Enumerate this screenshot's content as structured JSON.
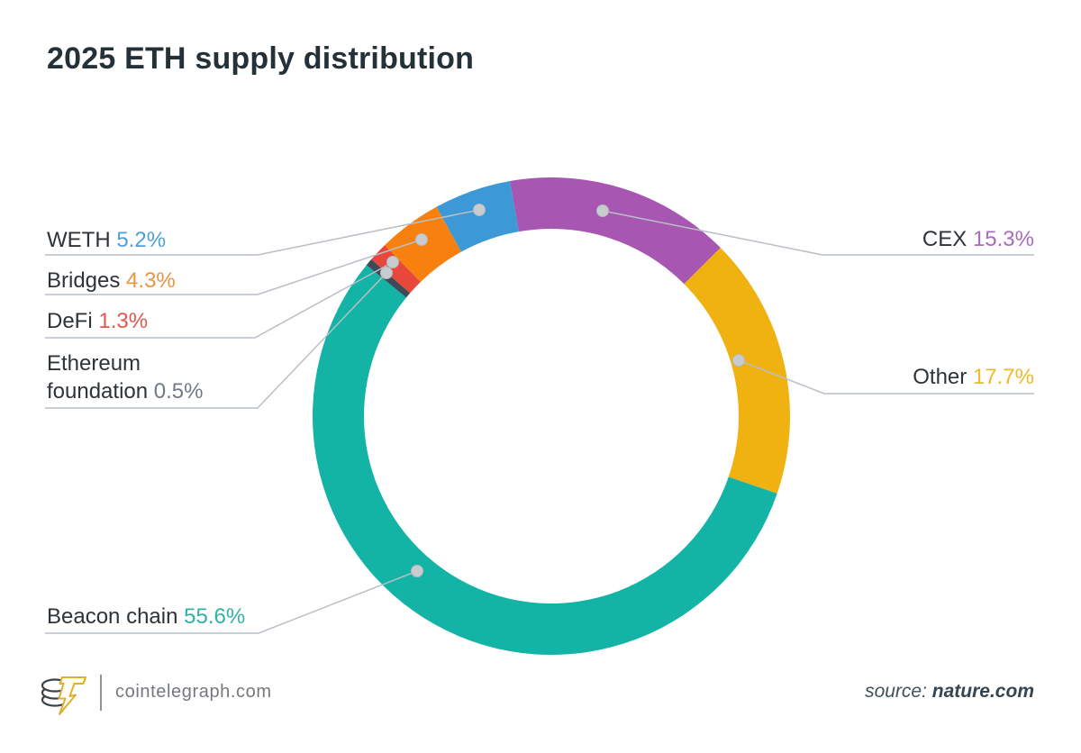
{
  "page": {
    "background": "#ffffff"
  },
  "title": "2025 ETH supply distribution",
  "chart_data": {
    "type": "pie",
    "subtype": "donut",
    "title": "2025 ETH supply distribution",
    "unit": "%",
    "rotation_deg": -10,
    "direction": "clockwise",
    "inner_radius_ratio": 0.785,
    "legend_position": "callout-labels",
    "slices": [
      {
        "label": "CEX",
        "value": 15.3,
        "display": "15.3%",
        "color": "#A756B2",
        "pct_color": "#A96CBC",
        "callout_side": "right"
      },
      {
        "label": "Other",
        "value": 17.7,
        "display": "17.7%",
        "color": "#EFB211",
        "pct_color": "#EEB92F",
        "callout_side": "right"
      },
      {
        "label": "Beacon chain",
        "value": 55.6,
        "display": "55.6%",
        "color": "#13B3A6",
        "pct_color": "#2FB3A6",
        "callout_side": "left"
      },
      {
        "label": "Ethereum foundation",
        "value": 0.5,
        "display": "0.5%",
        "color": "#3E4A58",
        "pct_color": "#6F7B87",
        "callout_side": "left"
      },
      {
        "label": "DeFi",
        "value": 1.3,
        "display": "1.3%",
        "color": "#E8483B",
        "pct_color": "#E2574A",
        "callout_side": "left"
      },
      {
        "label": "Bridges",
        "value": 4.3,
        "display": "4.3%",
        "color": "#F8800E",
        "pct_color": "#EA9440",
        "callout_side": "left"
      },
      {
        "label": "WETH",
        "value": 5.2,
        "display": "5.2%",
        "color": "#3D99D6",
        "pct_color": "#4C9FD9",
        "callout_side": "left"
      }
    ]
  },
  "footer": {
    "logo": "cointelegraph-coins-lightning-logo",
    "brand": "cointelegraph.com",
    "source_prefix": "source:",
    "source_name": "nature.com"
  }
}
